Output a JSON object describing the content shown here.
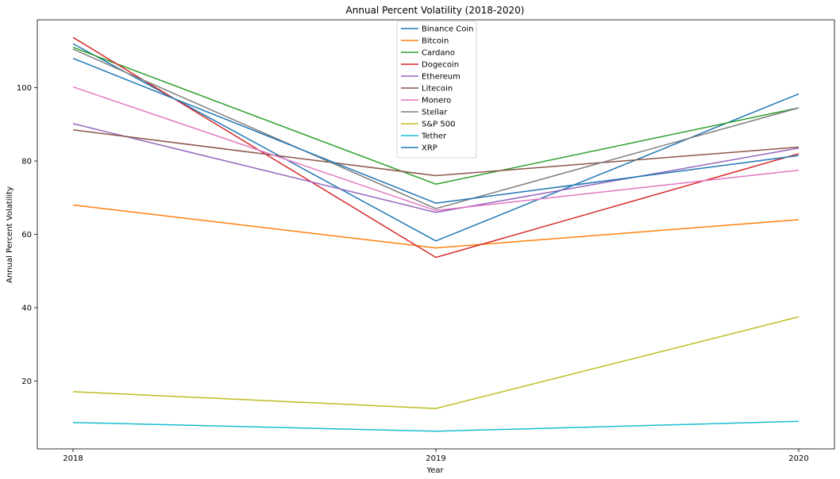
{
  "chart_data": {
    "type": "line",
    "title": "Annual Percent Volatility (2018-2020)",
    "xlabel": "Year",
    "ylabel": "Annual Percent Volatility",
    "x": [
      "2018",
      "2019",
      "2020"
    ],
    "ylim": [
      1.5,
      118.5
    ],
    "yticks": [
      20,
      40,
      60,
      80,
      100
    ],
    "grid": false,
    "legend_position": "top-center",
    "series": [
      {
        "name": "Binance Coin",
        "color": "#1f77b4",
        "values": [
          112.0,
          58.2,
          98.3
        ]
      },
      {
        "name": "Bitcoin",
        "color": "#ff7f0e",
        "values": [
          68.0,
          56.3,
          64.0
        ]
      },
      {
        "name": "Cardano",
        "color": "#2ca02c",
        "values": [
          111.0,
          73.7,
          94.5
        ]
      },
      {
        "name": "Dogecoin",
        "color": "#d62728",
        "values": [
          113.7,
          53.7,
          82.0
        ]
      },
      {
        "name": "Ethereum",
        "color": "#9467bd",
        "values": [
          90.2,
          66.0,
          83.5
        ]
      },
      {
        "name": "Litecoin",
        "color": "#8c564b",
        "values": [
          88.5,
          76.0,
          83.8
        ]
      },
      {
        "name": "Monero",
        "color": "#e377c2",
        "values": [
          100.2,
          66.5,
          77.5
        ]
      },
      {
        "name": "Stellar",
        "color": "#7f7f7f",
        "values": [
          110.5,
          67.0,
          94.5
        ]
      },
      {
        "name": "S&P 500",
        "color": "#bcbd22",
        "values": [
          17.1,
          12.5,
          37.5
        ]
      },
      {
        "name": "Tether",
        "color": "#17becf",
        "values": [
          8.7,
          6.3,
          9.0
        ]
      },
      {
        "name": "XRP",
        "color": "#1f77b4",
        "values": [
          108.0,
          68.5,
          81.5
        ]
      }
    ]
  }
}
